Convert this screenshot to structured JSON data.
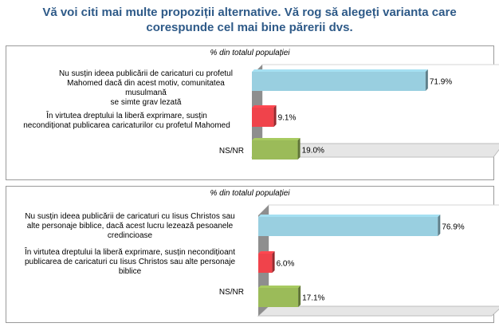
{
  "title_line1": "Vă voi citi mai multe propoziții alternative. Vă rog să alegeți varianta care",
  "title_line2": "corespunde cel mai bine părerii dvs.",
  "colors": {
    "title": "#2e5a88",
    "blue": "#99cfe0",
    "red": "#f0434b",
    "green": "#9bbb59"
  },
  "chart_data": [
    {
      "type": "bar",
      "orientation": "horizontal",
      "title": "% din totalul populației",
      "categories": [
        "Nu susțin ideea publicării de caricaturi cu profetul Mahomed dacă din acest motiv, comunitatea musulmană se simte grav lezată",
        "În virtutea dreptului la liberă exprimare, susțin necondiționat publicarea caricaturilor cu profetul Mahomed",
        "NS/NR"
      ],
      "values": [
        71.9,
        9.1,
        19.0
      ],
      "value_labels": [
        "71.9%",
        "9.1%",
        "19.0%"
      ],
      "xlim": [
        0,
        100
      ],
      "colors": [
        "#99cfe0",
        "#f0434b",
        "#9bbb59"
      ]
    },
    {
      "type": "bar",
      "orientation": "horizontal",
      "title": "% din totalul populației",
      "categories": [
        "Nu susțin ideea publicării de caricaturi cu Iisus Christos sau alte personaje biblice, dacă acest lucru lezează pesoanele credincioase",
        "În virtutea dreptului la liberă exprimare, susțin necondițioant publicarea de caricaturi cu Iisus Christos sau alte personaje biblice",
        "NS/NR"
      ],
      "values": [
        76.9,
        6.0,
        17.1
      ],
      "value_labels": [
        "76.9%",
        "6.0%",
        "17.1%"
      ],
      "xlim": [
        0,
        100
      ],
      "colors": [
        "#99cfe0",
        "#f0434b",
        "#9bbb59"
      ]
    }
  ],
  "panels": [
    {
      "subtitle": "% din totalul populației",
      "labels": [
        [
          "Nu susțin ideea publicării de caricaturi cu profetul",
          "Mahomed dacă din acest motiv, comunitatea musulmană",
          "se simte grav lezată"
        ],
        [
          "În virtutea dreptului la liberă exprimare, susțin",
          "necondiționat publicarea caricaturilor cu profetul Mahomed"
        ],
        [
          "NS/NR"
        ]
      ]
    },
    {
      "subtitle": "% din totalul populației",
      "labels": [
        [
          "Nu susțin ideea publicării de caricaturi cu Iisus Christos sau",
          "alte personaje biblice, dacă acest lucru lezează pesoanele",
          "credincioase"
        ],
        [
          "În virtutea dreptului la liberă exprimare, susțin necondițioant",
          "publicarea de caricaturi cu Iisus Christos sau alte personaje",
          "biblice"
        ],
        [
          "NS/NR"
        ]
      ]
    }
  ]
}
